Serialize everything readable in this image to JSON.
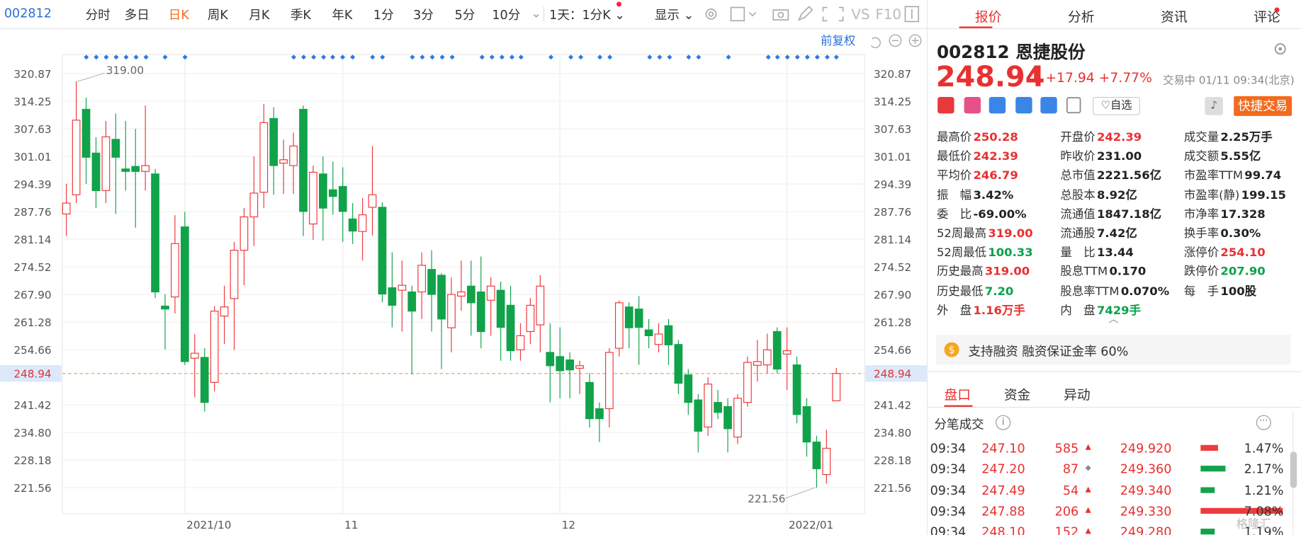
{
  "toolbar": {
    "code": "002812",
    "tabs": [
      "分时",
      "多日",
      "日K",
      "周K",
      "月K",
      "季K",
      "年K",
      "1分",
      "3分",
      "5分",
      "10分"
    ],
    "period": "1天：1分K",
    "display": "显示",
    "vs": "VS",
    "f10": "F10"
  },
  "chart_data": {
    "type": "candlestick",
    "adjust_label": "前复权",
    "categories": [
      null,
      null,
      null,
      null,
      null,
      null,
      null,
      null,
      null,
      null,
      null,
      null,
      "2021/10",
      null,
      null,
      null,
      null,
      null,
      null,
      null,
      null,
      null,
      null,
      null,
      null,
      null,
      null,
      null,
      "11",
      null,
      null,
      null,
      null,
      null,
      null,
      null,
      null,
      null,
      null,
      null,
      null,
      null,
      null,
      null,
      null,
      null,
      null,
      null,
      null,
      null,
      "12",
      null,
      null,
      null,
      null,
      null,
      null,
      null,
      null,
      null,
      null,
      null,
      null,
      null,
      null,
      null,
      null,
      null,
      null,
      null,
      null,
      null,
      null,
      "2022/01",
      null,
      null,
      null,
      null,
      null
    ],
    "candles": [
      {
        "o": 287.2,
        "h": 294.4,
        "l": 281.9,
        "c": 289.8
      },
      {
        "o": 291.8,
        "h": 319.0,
        "l": 289.8,
        "c": 309.7
      },
      {
        "o": 312.3,
        "h": 315.1,
        "l": 294.4,
        "c": 300.8
      },
      {
        "o": 301.8,
        "h": 305.6,
        "l": 288.6,
        "c": 292.8
      },
      {
        "o": 292.8,
        "h": 309.5,
        "l": 289.8,
        "c": 305.7
      },
      {
        "o": 305.1,
        "h": 311.3,
        "l": 287.2,
        "c": 300.8
      },
      {
        "o": 298.0,
        "h": 309.5,
        "l": 292.8,
        "c": 297.4
      },
      {
        "o": 298.6,
        "h": 307.6,
        "l": 283.9,
        "c": 297.4
      },
      {
        "o": 297.4,
        "h": 313.2,
        "l": 292.8,
        "c": 298.8
      },
      {
        "o": 296.8,
        "h": 298.0,
        "l": 267.0,
        "c": 268.5
      },
      {
        "o": 265.1,
        "h": 268.0,
        "l": 254.7,
        "c": 264.4
      },
      {
        "o": 267.3,
        "h": 286.9,
        "l": 263.3,
        "c": 280.1
      },
      {
        "o": 284.1,
        "h": 287.7,
        "l": 251.0,
        "c": 251.8
      },
      {
        "o": 252.6,
        "h": 258.4,
        "l": 243.2,
        "c": 253.8
      },
      {
        "o": 252.8,
        "h": 255.0,
        "l": 239.8,
        "c": 242.0
      },
      {
        "o": 246.8,
        "h": 265.1,
        "l": 244.7,
        "c": 263.9
      },
      {
        "o": 262.7,
        "h": 270.0,
        "l": 256.0,
        "c": 264.9
      },
      {
        "o": 266.9,
        "h": 280.5,
        "l": 254.6,
        "c": 278.5
      },
      {
        "o": 278.5,
        "h": 288.6,
        "l": 270.1,
        "c": 286.5
      },
      {
        "o": 286.5,
        "h": 301.0,
        "l": 279.5,
        "c": 292.2
      },
      {
        "o": 292.4,
        "h": 313.6,
        "l": 288.6,
        "c": 309.1
      },
      {
        "o": 310.1,
        "h": 312.8,
        "l": 291.8,
        "c": 298.8
      },
      {
        "o": 299.4,
        "h": 305.0,
        "l": 292.0,
        "c": 300.2
      },
      {
        "o": 298.8,
        "h": 306.7,
        "l": 292.0,
        "c": 303.5
      },
      {
        "o": 312.3,
        "h": 313.2,
        "l": 281.9,
        "c": 287.8
      },
      {
        "o": 284.8,
        "h": 298.8,
        "l": 281.0,
        "c": 297.2
      },
      {
        "o": 296.8,
        "h": 301.0,
        "l": 280.8,
        "c": 288.6
      },
      {
        "o": 293.0,
        "h": 299.8,
        "l": 287.0,
        "c": 291.4
      },
      {
        "o": 293.8,
        "h": 298.4,
        "l": 280.5,
        "c": 287.8
      },
      {
        "o": 286.0,
        "h": 289.8,
        "l": 280.0,
        "c": 283.1
      },
      {
        "o": 283.0,
        "h": 291.0,
        "l": 276.0,
        "c": 287.0
      },
      {
        "o": 288.8,
        "h": 303.5,
        "l": 282.0,
        "c": 291.8
      },
      {
        "o": 288.8,
        "h": 290.0,
        "l": 266.0,
        "c": 268.0
      },
      {
        "o": 269.5,
        "h": 278.0,
        "l": 260.0,
        "c": 265.3
      },
      {
        "o": 268.9,
        "h": 276.0,
        "l": 259.0,
        "c": 270.1
      },
      {
        "o": 268.5,
        "h": 270.0,
        "l": 248.7,
        "c": 263.9
      },
      {
        "o": 268.5,
        "h": 278.0,
        "l": 262.0,
        "c": 274.9
      },
      {
        "o": 273.9,
        "h": 278.5,
        "l": 259.0,
        "c": 267.9
      },
      {
        "o": 272.5,
        "h": 273.0,
        "l": 250.0,
        "c": 262.0
      },
      {
        "o": 259.9,
        "h": 272.0,
        "l": 254.0,
        "c": 267.9
      },
      {
        "o": 267.5,
        "h": 276.0,
        "l": 264.0,
        "c": 268.5
      },
      {
        "o": 269.9,
        "h": 276.0,
        "l": 258.0,
        "c": 265.9
      },
      {
        "o": 268.5,
        "h": 277.0,
        "l": 255.0,
        "c": 259.0
      },
      {
        "o": 266.5,
        "h": 272.0,
        "l": 258.0,
        "c": 269.9
      },
      {
        "o": 268.9,
        "h": 271.0,
        "l": 252.0,
        "c": 260.0
      },
      {
        "o": 265.3,
        "h": 270.0,
        "l": 252.0,
        "c": 254.4
      },
      {
        "o": 254.6,
        "h": 261.0,
        "l": 252.0,
        "c": 258.0
      },
      {
        "o": 259.0,
        "h": 267.0,
        "l": 256.0,
        "c": 265.3
      },
      {
        "o": 260.6,
        "h": 272.5,
        "l": 254.0,
        "c": 269.9
      },
      {
        "o": 254.0,
        "h": 261.0,
        "l": 242.0,
        "c": 250.8
      },
      {
        "o": 253.0,
        "h": 260.0,
        "l": 243.0,
        "c": 249.6
      },
      {
        "o": 252.2,
        "h": 254.0,
        "l": 243.0,
        "c": 249.8
      },
      {
        "o": 250.2,
        "h": 252.0,
        "l": 244.0,
        "c": 250.8
      },
      {
        "o": 246.8,
        "h": 249.0,
        "l": 236.0,
        "c": 238.1
      },
      {
        "o": 240.5,
        "h": 242.0,
        "l": 232.5,
        "c": 238.1
      },
      {
        "o": 240.5,
        "h": 255.0,
        "l": 236.0,
        "c": 254.0
      },
      {
        "o": 255.0,
        "h": 266.5,
        "l": 253.0,
        "c": 265.9
      },
      {
        "o": 264.9,
        "h": 266.0,
        "l": 255.0,
        "c": 259.9
      },
      {
        "o": 264.4,
        "h": 267.5,
        "l": 251.0,
        "c": 260.0
      },
      {
        "o": 259.4,
        "h": 262.0,
        "l": 255.0,
        "c": 258.0
      },
      {
        "o": 255.9,
        "h": 261.0,
        "l": 254.0,
        "c": 258.4
      },
      {
        "o": 260.4,
        "h": 262.0,
        "l": 251.0,
        "c": 255.8
      },
      {
        "o": 255.9,
        "h": 257.0,
        "l": 244.0,
        "c": 246.6
      },
      {
        "o": 248.6,
        "h": 250.0,
        "l": 239.0,
        "c": 242.0
      },
      {
        "o": 242.6,
        "h": 244.0,
        "l": 230.0,
        "c": 235.1
      },
      {
        "o": 236.1,
        "h": 248.0,
        "l": 234.0,
        "c": 246.4
      },
      {
        "o": 242.0,
        "h": 245.0,
        "l": 238.0,
        "c": 239.6
      },
      {
        "o": 241.0,
        "h": 243.0,
        "l": 230.0,
        "c": 235.7
      },
      {
        "o": 233.7,
        "h": 244.0,
        "l": 232.0,
        "c": 243.0
      },
      {
        "o": 242.0,
        "h": 253.0,
        "l": 241.0,
        "c": 251.6
      },
      {
        "o": 250.9,
        "h": 257.0,
        "l": 247.0,
        "c": 251.8
      },
      {
        "o": 251.0,
        "h": 258.5,
        "l": 249.0,
        "c": 254.6
      },
      {
        "o": 259.0,
        "h": 260.0,
        "l": 249.0,
        "c": 250.0
      },
      {
        "o": 253.6,
        "h": 260.0,
        "l": 245.0,
        "c": 254.4
      },
      {
        "o": 251.0,
        "h": 253.0,
        "l": 237.0,
        "c": 239.1
      },
      {
        "o": 241.0,
        "h": 243.0,
        "l": 229.0,
        "c": 232.5
      },
      {
        "o": 232.5,
        "h": 234.0,
        "l": 221.56,
        "c": 226.1
      },
      {
        "o": 224.7,
        "h": 235.5,
        "l": 222.5,
        "c": 231.0
      },
      {
        "o": 242.39,
        "h": 250.28,
        "l": 242.39,
        "c": 248.94
      }
    ],
    "up_color": "#f0373a",
    "down_color": "#10a34a",
    "ylim": [
      215.3,
      325.4
    ],
    "yticks": [
      320.87,
      314.25,
      307.63,
      301.01,
      294.39,
      287.76,
      281.14,
      274.52,
      {
        "value": 267.9,
        "label": "267.90"
      },
      261.28,
      254.66,
      241.42,
      {
        "value": 234.8,
        "label": "234.80"
      },
      228.18,
      221.56
    ],
    "current_price": 248.94,
    "high_point": {
      "index": 1,
      "value": 319,
      "label": "319.00"
    },
    "low_point": {
      "index": 76,
      "value": 221.56
    },
    "grid": true
  },
  "quote": {
    "tabs": [
      "报价",
      "分析",
      "资讯",
      "评论"
    ],
    "code": "002812",
    "name": "恩捷股份",
    "price": "248.94",
    "change": "+17.94",
    "pct": "+7.77%",
    "status": "交易中 01/11 09:34(北京)",
    "watch": "自选",
    "trade": "快捷交易",
    "stats": [
      [
        {
          "label": "最高价",
          "value": "250.28",
          "tone": "up"
        },
        {
          "label": "最低价",
          "value": "242.39",
          "tone": "up"
        },
        {
          "label": "平均价",
          "value": "246.79",
          "tone": "up"
        },
        {
          "label": "振　幅",
          "value": "3.42%"
        },
        {
          "label": "委　比",
          "value": "-69.00%"
        },
        {
          "label": "52周最高",
          "value": "319.00",
          "tone": "up"
        },
        {
          "label": "52周最低",
          "value": "100.33",
          "tone": "down"
        },
        {
          "label": "历史最高",
          "value": "319.00",
          "tone": "up"
        },
        {
          "label": "历史最低",
          "value": "7.20",
          "tone": "down"
        },
        {
          "label": "外　盘",
          "value": "1.16万手",
          "tone": "up"
        }
      ],
      [
        {
          "label": "开盘价",
          "value": "242.39",
          "tone": "up"
        },
        {
          "label": "昨收价",
          "value": "231.00"
        },
        {
          "label": "总市值",
          "value": "2221.56亿"
        },
        {
          "label": "总股本",
          "value": "8.92亿"
        },
        {
          "label": "流通值",
          "value": "1847.18亿"
        },
        {
          "label": "流通股",
          "value": "7.42亿"
        },
        {
          "label": "量　比",
          "value": "13.44"
        },
        {
          "label": "股息TTM",
          "value": "0.170"
        },
        {
          "label": "股息率TTM",
          "value": "0.070%"
        },
        {
          "label": "内　盘",
          "value": "7429手",
          "tone": "down"
        }
      ],
      [
        {
          "label": "成交量",
          "value": "2.25万手"
        },
        {
          "label": "成交额",
          "value": "5.55亿"
        },
        {
          "label": "市盈率TTM",
          "value": "99.74"
        },
        {
          "label": "市盈率(静)",
          "value": "199.15"
        },
        {
          "label": "市净率",
          "value": "17.328"
        },
        {
          "label": "换手率",
          "value": "0.30%"
        },
        {
          "label": "涨停价",
          "value": "254.10",
          "tone": "up"
        },
        {
          "label": "跌停价",
          "value": "207.90",
          "tone": "down"
        },
        {
          "label": "每　手",
          "value": "100股"
        }
      ]
    ],
    "margin": "支持融资 融资保证金率 60%"
  },
  "orderbook": {
    "tabs": [
      "盘口",
      "资金",
      "异动"
    ],
    "title": "分笔成交",
    "trades": [
      {
        "time": "09:34",
        "price": "247.10",
        "volume": "585",
        "dir": "▲",
        "tone": "up",
        "price2": "249.920",
        "pct": 1.47,
        "pct_label": "1.47%",
        "bar_color": "#ee3b3b"
      },
      {
        "time": "09:34",
        "price": "247.20",
        "volume": "87",
        "dir": "◆",
        "tone": "flat",
        "price2": "249.360",
        "pct": 2.17,
        "pct_label": "2.17%",
        "bar_color": "#12a34a"
      },
      {
        "time": "09:34",
        "price": "247.49",
        "volume": "54",
        "dir": "▲",
        "tone": "up",
        "price2": "249.340",
        "pct": 1.21,
        "pct_label": "1.21%",
        "bar_color": "#12a34a"
      },
      {
        "time": "09:34",
        "price": "247.88",
        "volume": "206",
        "dir": "▲",
        "tone": "up",
        "price2": "249.330",
        "pct": 7.08,
        "pct_label": "7.08%",
        "bar_color": "#ee3b3b"
      },
      {
        "time": "09:34",
        "price": "248.10",
        "volume": "152",
        "dir": "▲",
        "tone": "up",
        "price2": "249.280",
        "pct": 1.19,
        "pct_label": "1.19%",
        "bar_color": "#12a34a"
      }
    ]
  },
  "watermark": "格隆汇"
}
